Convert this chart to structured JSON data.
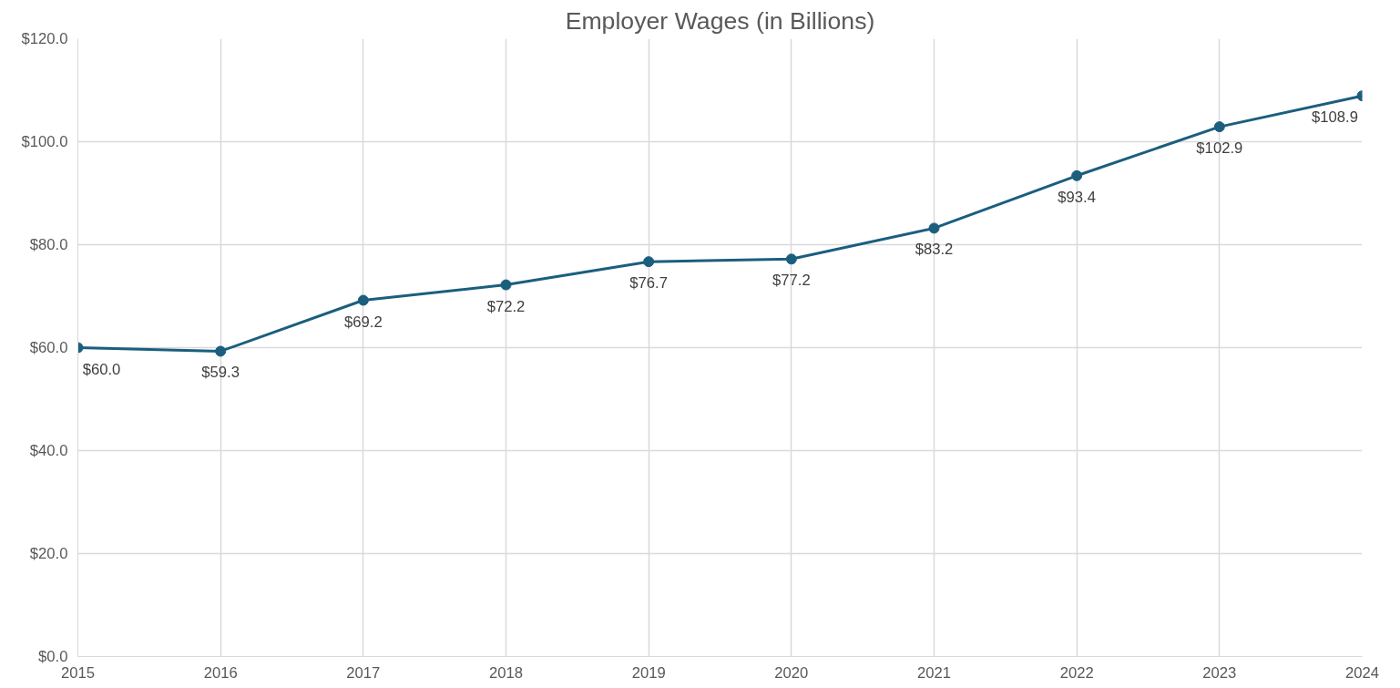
{
  "chart_data": {
    "type": "line",
    "title": "Employer Wages (in Billions)",
    "x": [
      2015,
      2016,
      2017,
      2018,
      2019,
      2020,
      2021,
      2022,
      2023,
      2024
    ],
    "series": [
      {
        "color": "#1b5e7e",
        "values": [
          60.0,
          59.3,
          69.2,
          72.2,
          76.7,
          77.2,
          83.2,
          93.4,
          102.9,
          108.9
        ],
        "value_labels": [
          "$60.0",
          "$59.3",
          "$69.2",
          "$72.2",
          "$76.7",
          "$77.2",
          "$83.2",
          "$93.4",
          "$102.9",
          "$108.9"
        ]
      }
    ],
    "xlim": [
      2015,
      2024
    ],
    "xticks": [
      2015,
      2016,
      2017,
      2018,
      2019,
      2020,
      2021,
      2022,
      2023,
      2024
    ],
    "ylim": [
      0,
      120
    ],
    "yticks": [
      {
        "value": 0,
        "label": "$0.0"
      },
      {
        "value": 20,
        "label": "$20.0"
      },
      {
        "value": 40,
        "label": "$40.0"
      },
      {
        "value": 60,
        "label": "$60.0"
      },
      {
        "value": 80,
        "label": "$80.0"
      },
      {
        "value": 100,
        "label": "$100.0"
      },
      {
        "value": 120,
        "label": "$120.0"
      }
    ],
    "grid": true,
    "marker": "circle",
    "line_style": "solid"
  }
}
